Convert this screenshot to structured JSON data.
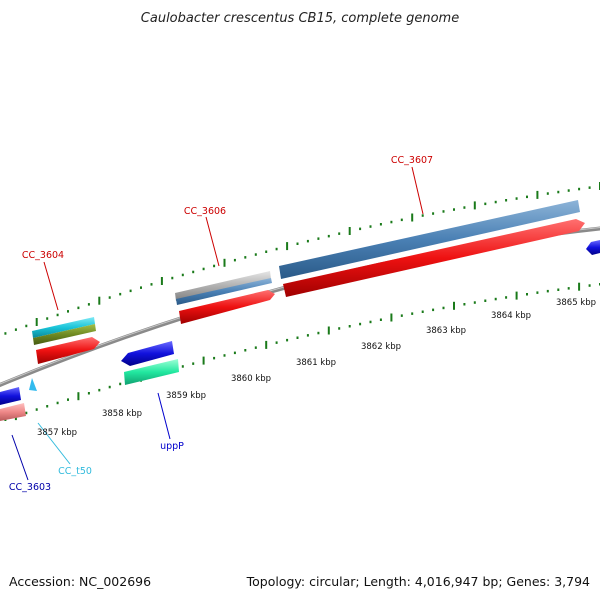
{
  "title": "Caulobacter crescentus CB15, complete genome",
  "footer": {
    "accession": "Accession: NC_002696",
    "summary": "Topology: circular; Length: 4,016,947 bp; Genes: 3,794"
  },
  "scale_labels": [
    "3857 kbp",
    "3858 kbp",
    "3859 kbp",
    "3860 kbp",
    "3861 kbp",
    "3862 kbp",
    "3863 kbp",
    "3864 kbp",
    "3865 kbp"
  ],
  "gene_labels": [
    {
      "text": "CC_3607",
      "color": "#cc0000"
    },
    {
      "text": "CC_3606",
      "color": "#cc0000"
    },
    {
      "text": "CC_3604",
      "color": "#cc0000"
    },
    {
      "text": "uppP",
      "color": "#0000cc"
    },
    {
      "text": "CC_t50",
      "color": "#33bbdd"
    },
    {
      "text": "CC_3603",
      "color": "#0000aa"
    }
  ],
  "colors": {
    "cds_red": "#ee1111",
    "cds_blue": "#1111dd",
    "steelblue": "#4a80b4",
    "cyan": "#19c4d8",
    "olive": "#6f8a22",
    "grey": "#b0b0b0",
    "mint": "#22e8a0",
    "pink": "#ee8888",
    "tick_green": "#1a7a1a",
    "backbone": "#888888"
  }
}
